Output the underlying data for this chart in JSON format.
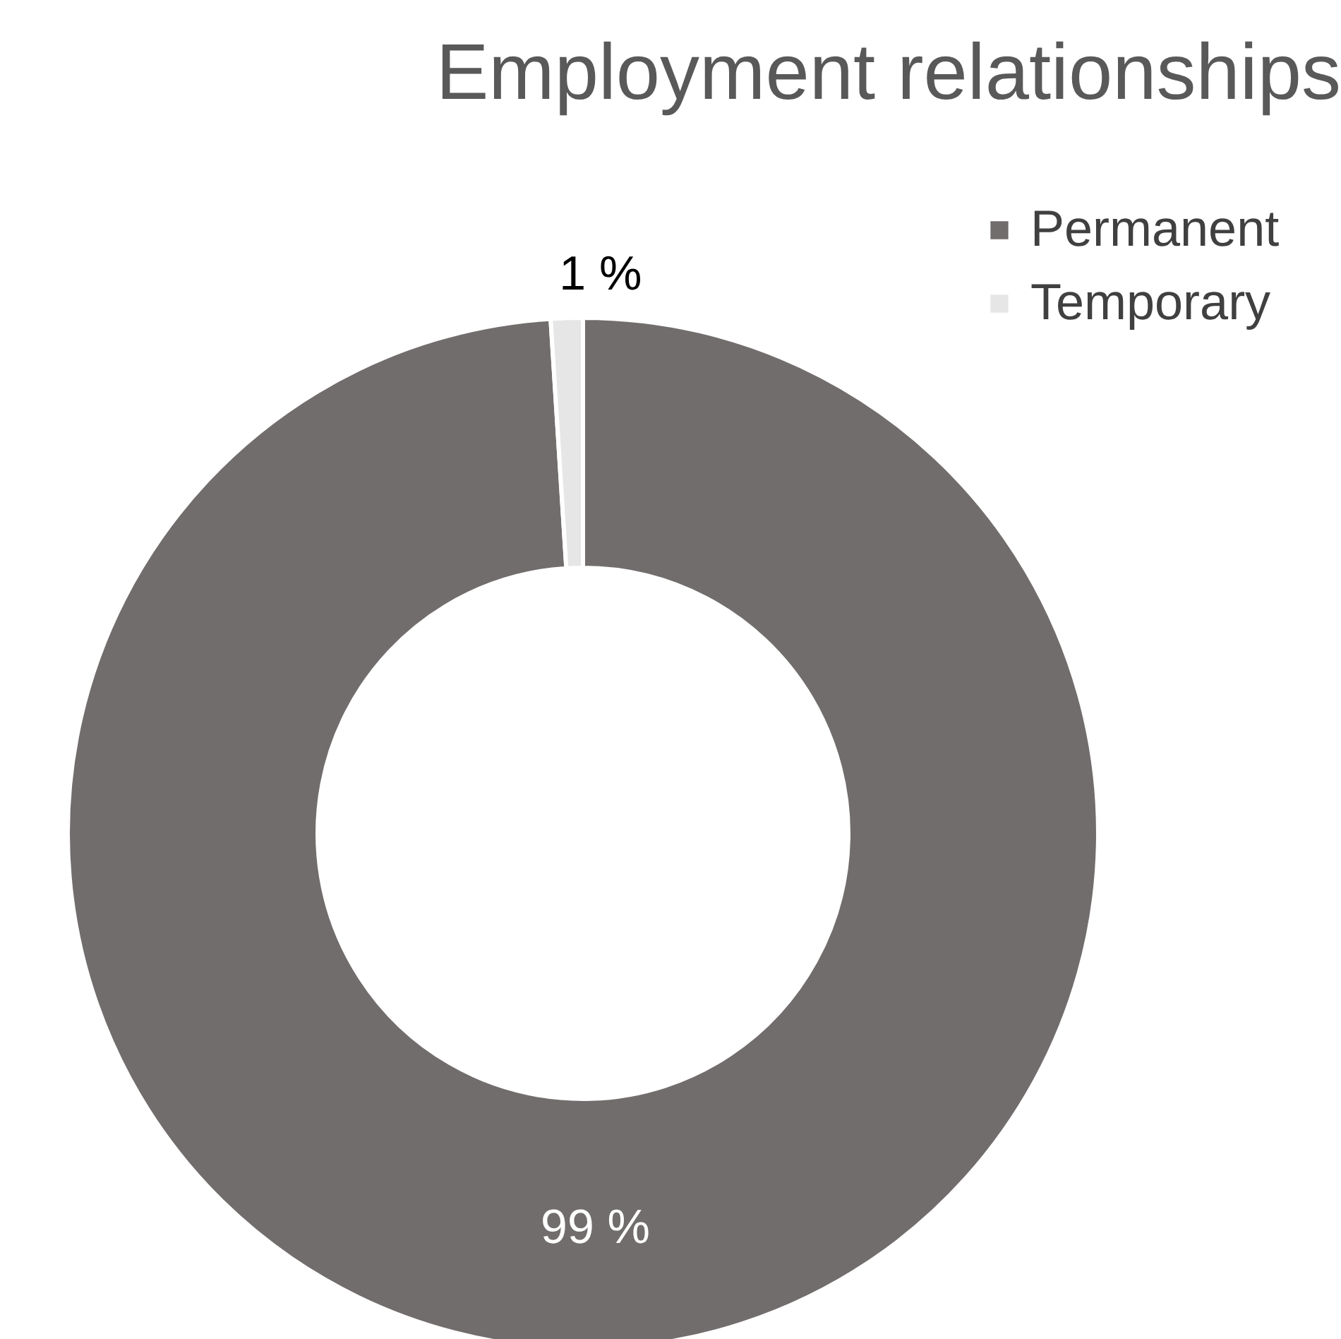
{
  "chart_data": {
    "type": "donut",
    "title": "Employment relationships",
    "categories": [
      "Permanent",
      "Temporary"
    ],
    "values": [
      99,
      1
    ],
    "colors": [
      "#726d6d",
      "#e6e6e6"
    ],
    "value_labels": [
      "99 %",
      "1 %"
    ],
    "legend": "top right"
  }
}
